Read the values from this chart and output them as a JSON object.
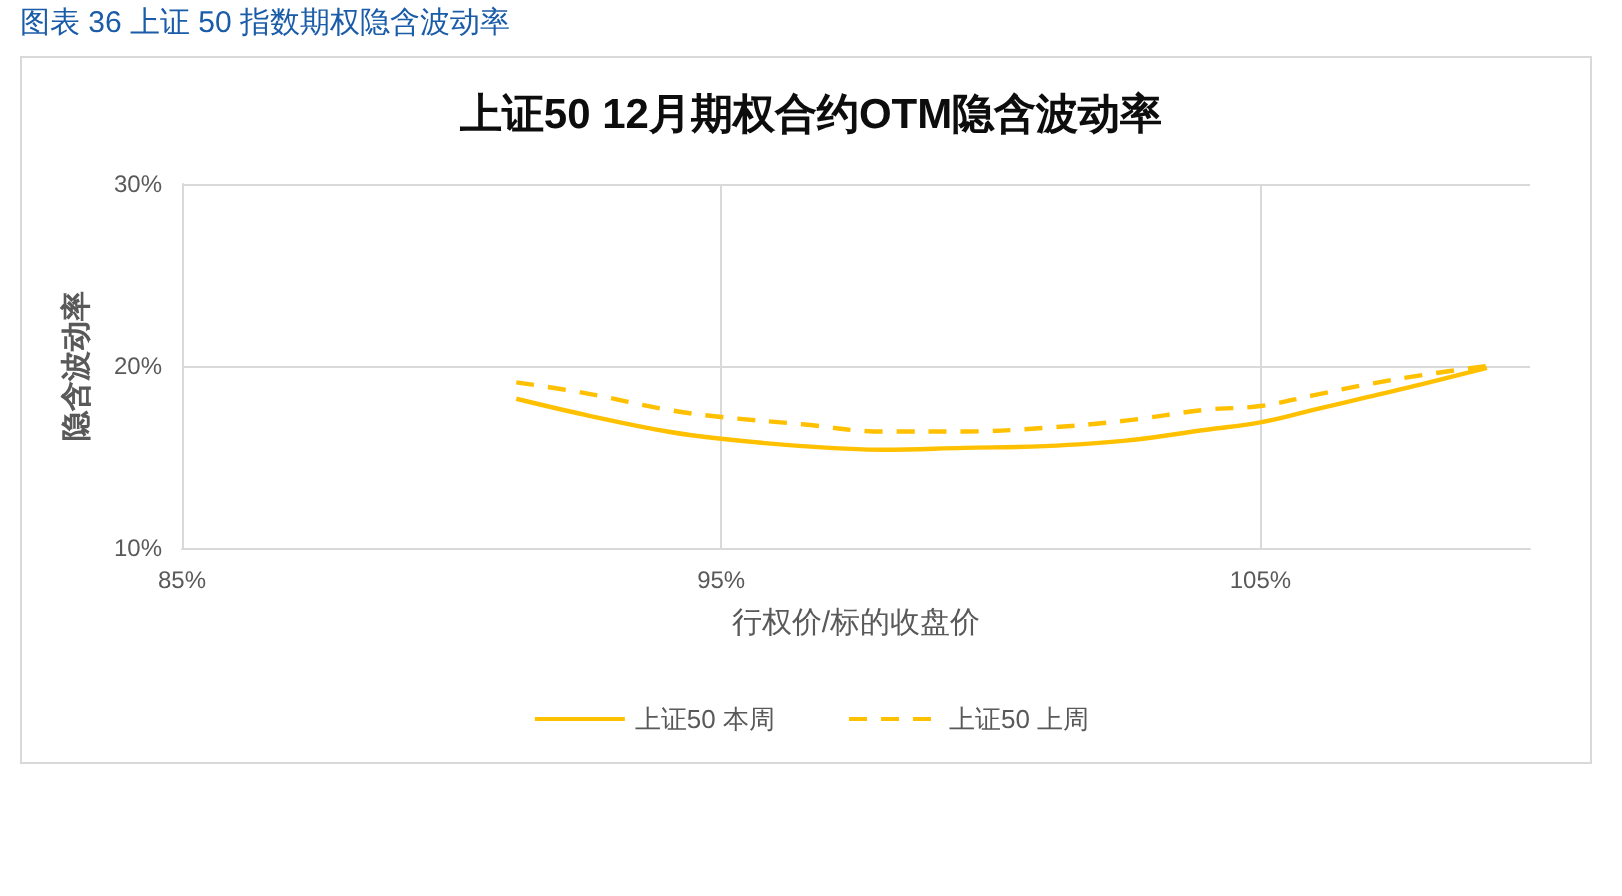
{
  "chart_data": {
    "type": "line",
    "title": "上证50 12月期权合约OTM隐含波动率",
    "xlabel": "行权价/标的收盘价",
    "ylabel": "隐含波动率",
    "annotations": [
      "图表 36 上证 50 指数期权隐含波动率"
    ],
    "x": [
      91.2,
      92.5,
      94,
      95,
      96.5,
      98,
      99.5,
      101,
      102.5,
      104,
      105,
      106,
      107,
      108,
      109.2
    ],
    "series": [
      {
        "name": "上证50 本周",
        "color": "#ffc000",
        "line_style": "solid",
        "values": [
          18.2,
          17.3,
          16.4,
          16.0,
          15.6,
          15.4,
          15.5,
          15.6,
          15.9,
          16.5,
          16.9,
          17.6,
          18.3,
          19.0,
          19.9
        ]
      },
      {
        "name": "上证50 上周",
        "color": "#ffc000",
        "line_style": "dashed",
        "values": [
          19.1,
          18.5,
          17.6,
          17.2,
          16.8,
          16.4,
          16.4,
          16.6,
          17.0,
          17.6,
          17.8,
          18.4,
          19.0,
          19.5,
          20.0
        ]
      }
    ],
    "xlim": [
      85,
      110
    ],
    "xticks": [
      {
        "value": 85,
        "label": "85%"
      },
      {
        "value": 95,
        "label": "95%"
      },
      {
        "value": 105,
        "label": "105%"
      }
    ],
    "ylim": [
      10,
      30
    ],
    "yticks": [
      {
        "value": 10,
        "label": "10%"
      },
      {
        "value": 20,
        "label": "20%"
      },
      {
        "value": 30,
        "label": "30%"
      }
    ],
    "grid": true,
    "legend": "bottom",
    "marker": "none"
  }
}
